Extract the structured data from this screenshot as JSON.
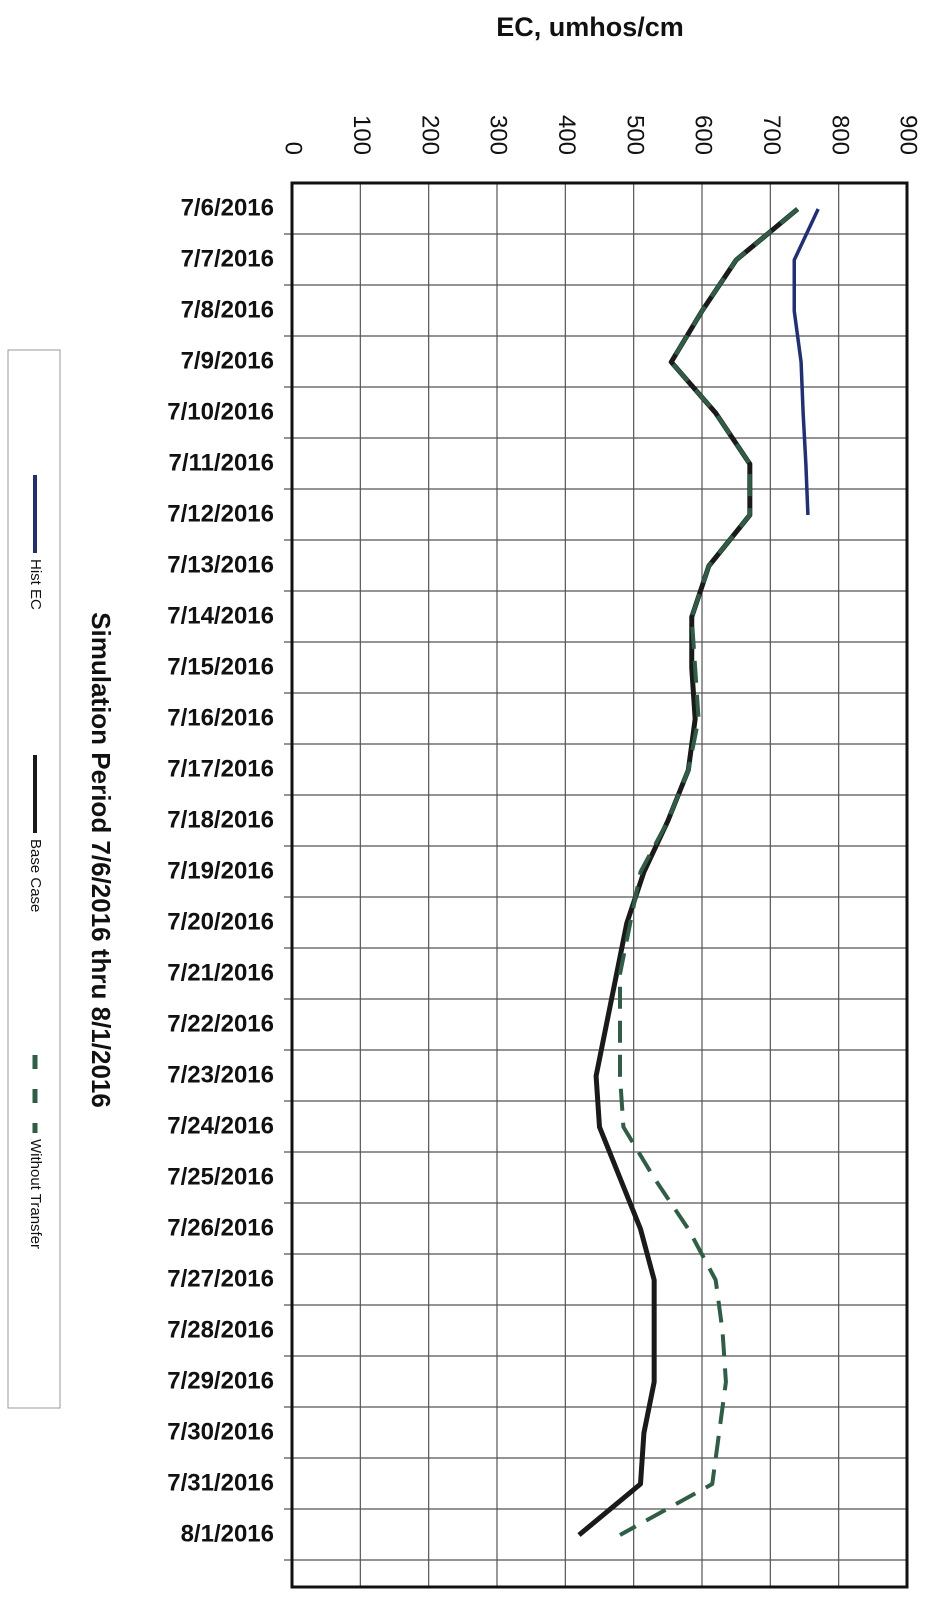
{
  "chart_data": {
    "type": "line",
    "x_label": "EC, umhos/cm",
    "y_label": "Simulation Period 7/6/2016 thru 8/1/2016",
    "categories": [
      "7/6/2016",
      "7/7/2016",
      "7/8/2016",
      "7/9/2016",
      "7/10/2016",
      "7/11/2016",
      "7/12/2016",
      "7/13/2016",
      "7/14/2016",
      "7/15/2016",
      "7/16/2016",
      "7/17/2016",
      "7/18/2016",
      "7/19/2016",
      "7/20/2016",
      "7/21/2016",
      "7/22/2016",
      "7/23/2016",
      "7/24/2016",
      "7/25/2016",
      "7/26/2016",
      "7/27/2016",
      "7/28/2016",
      "7/29/2016",
      "7/30/2016",
      "7/31/2016",
      "8/1/2016"
    ],
    "series": [
      {
        "name": "Hist EC",
        "color": "#1f2f7a",
        "dash": false,
        "values": [
          770,
          735,
          735,
          745,
          748,
          752,
          755,
          null,
          null,
          null,
          null,
          null,
          null,
          null,
          null,
          null,
          null,
          null,
          null,
          null,
          null,
          null,
          null,
          null,
          null,
          null,
          null
        ]
      },
      {
        "name": "Base Case",
        "color": "#1a1a1a",
        "dash": false,
        "values": [
          740,
          650,
          600,
          555,
          620,
          670,
          670,
          610,
          585,
          585,
          590,
          580,
          550,
          515,
          490,
          475,
          460,
          445,
          450,
          480,
          510,
          530,
          530,
          530,
          515,
          510,
          420
        ]
      },
      {
        "name": "Without Transfer",
        "color": "#2e5e44",
        "dash": true,
        "values": [
          740,
          650,
          600,
          555,
          620,
          670,
          670,
          610,
          585,
          590,
          595,
          580,
          550,
          510,
          495,
          480,
          480,
          480,
          485,
          530,
          580,
          620,
          630,
          635,
          625,
          615,
          480
        ]
      }
    ],
    "xlim": [
      0,
      900
    ],
    "xticks": [
      0,
      100,
      200,
      300,
      400,
      500,
      600,
      700,
      800,
      900
    ],
    "grid": true,
    "legend": "left"
  }
}
